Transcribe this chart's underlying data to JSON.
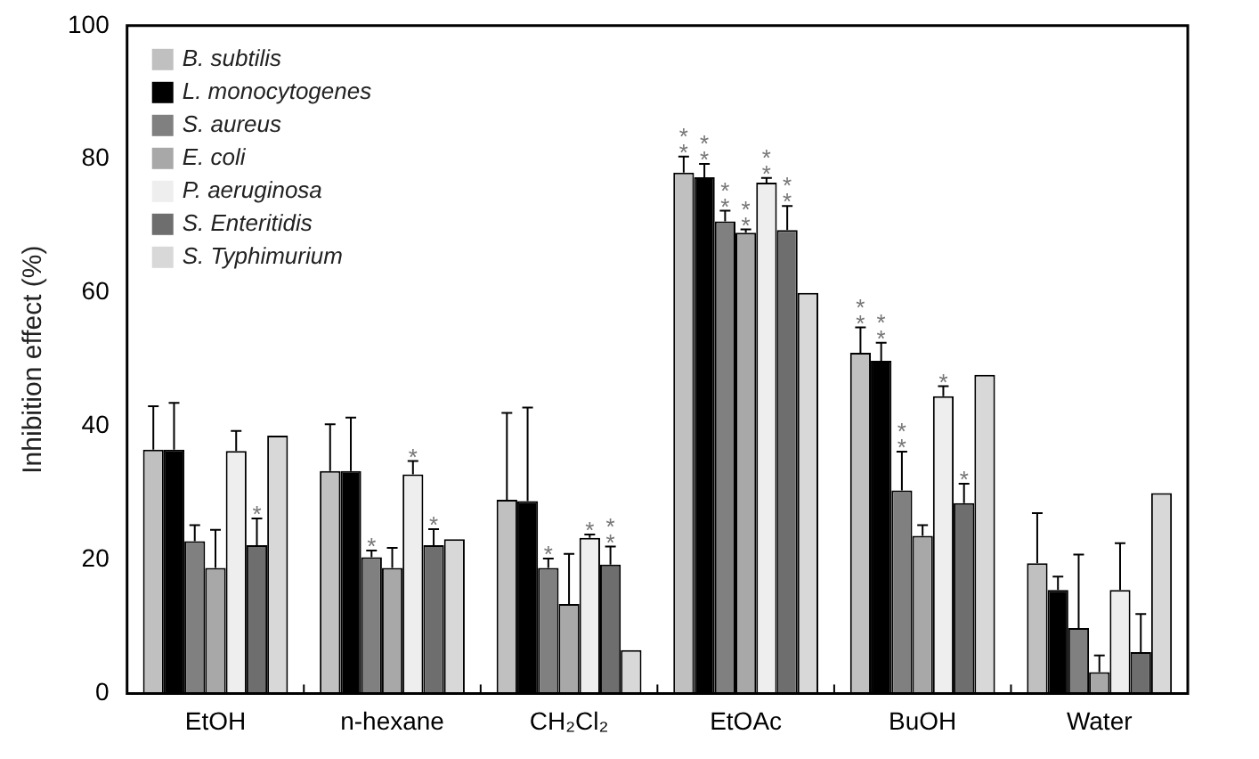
{
  "chart_data": {
    "type": "bar",
    "ylabel": "Inhibition effect (%)",
    "categories": [
      "EtOH",
      "n-hexane",
      "CH₂Cl₂",
      "EtOAc",
      "BuOH",
      "Water"
    ],
    "ylim": [
      0,
      100
    ],
    "yticks": [
      0,
      20,
      40,
      60,
      80,
      100
    ],
    "grid": false,
    "legend": "top left",
    "series": [
      {
        "name": "B. subtilis",
        "color": "#c0c0c0",
        "values": [
          36.5,
          33.3,
          29,
          78,
          51,
          19.5
        ],
        "errors": [
          6.5,
          7,
          13,
          2.4,
          3.8,
          7.5
        ],
        "value_labels": [
          null,
          null,
          null,
          "**",
          "**",
          null
        ]
      },
      {
        "name": "L. monocytogenes",
        "color": "#000000",
        "values": [
          36.5,
          33.3,
          28.8,
          77.3,
          49.8,
          15.5
        ],
        "errors": [
          7,
          8,
          14,
          2,
          2.7,
          2
        ],
        "value_labels": [
          null,
          null,
          null,
          "**",
          "**",
          null
        ]
      },
      {
        "name": "S. aureus",
        "color": "#808080",
        "values": [
          22.8,
          20.4,
          18.8,
          70.7,
          30.4,
          9.8
        ],
        "errors": [
          2.4,
          1,
          1.4,
          1.6,
          5.8,
          11
        ],
        "value_labels": [
          null,
          "*",
          "*",
          "**",
          "**",
          null
        ]
      },
      {
        "name": "E. coli",
        "color": "#a8a8a8",
        "values": [
          18.8,
          18.8,
          13.4,
          69,
          23.6,
          3.2
        ],
        "errors": [
          5.7,
          3,
          7.5,
          0.5,
          1.6,
          2.5
        ],
        "value_labels": [
          null,
          null,
          null,
          "**",
          null,
          null
        ]
      },
      {
        "name": "P. aeruginosa",
        "color": "#eeeeee",
        "values": [
          36.3,
          32.8,
          23.3,
          76.5,
          44.5,
          15.5
        ],
        "errors": [
          3,
          2,
          0.5,
          0.7,
          1.5,
          7
        ],
        "value_labels": [
          null,
          "*",
          "*",
          "**",
          "*",
          null
        ]
      },
      {
        "name": "S. Enteritidis",
        "color": "#6e6e6e",
        "values": [
          22.2,
          22.2,
          19.3,
          69.4,
          28.5,
          6.2
        ],
        "errors": [
          4,
          2.4,
          2.7,
          3.6,
          2.9,
          5.7
        ],
        "value_labels": [
          "*",
          "*",
          "**",
          "**",
          "*",
          null
        ]
      },
      {
        "name": "S. Typhimurium",
        "color": "#d8d8d8",
        "values": [
          38.6,
          23.1,
          6.5,
          60,
          47.7,
          30
        ],
        "errors": [
          null,
          null,
          null,
          null,
          null,
          null
        ],
        "value_labels": [
          null,
          null,
          null,
          null,
          null,
          null
        ]
      }
    ]
  }
}
